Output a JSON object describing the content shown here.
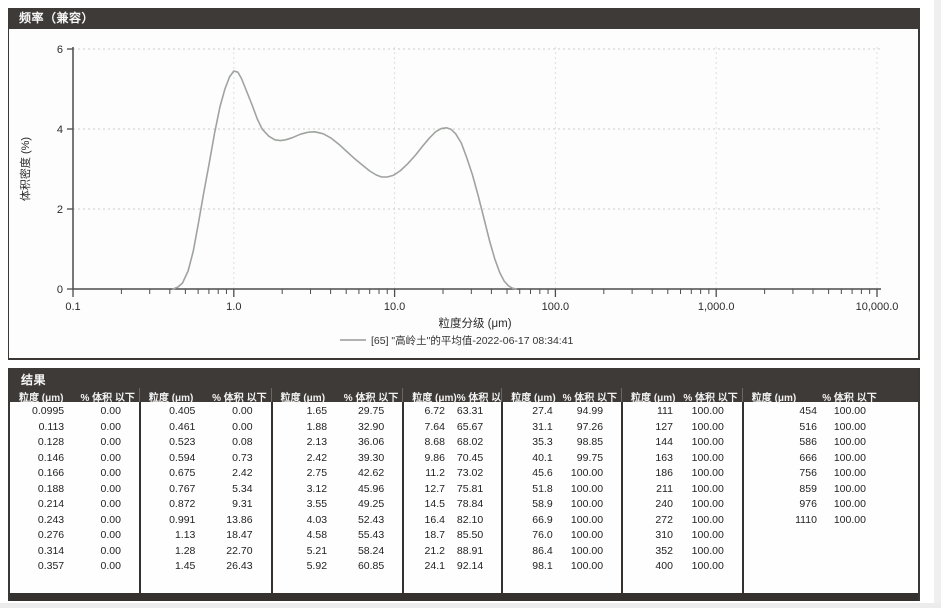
{
  "colors": {
    "bar_bg": "#3e3a37",
    "bar_text": "#f6f6f6",
    "curve": "#9fa49f",
    "grid": "#cccccc",
    "axis": "#4d4d4d",
    "tick_text": "#2b2b2b",
    "legend_line": "#9a9a9a"
  },
  "frequency_panel": {
    "title": "频率（兼容）"
  },
  "chart_data": {
    "type": "line",
    "title": "频率（兼容）",
    "xlabel": "粒度分级 (μm)",
    "ylabel": "体积密度 (%)",
    "x_scale": "log",
    "xlim": [
      0.1,
      10000
    ],
    "ylim": [
      0,
      6
    ],
    "x_ticks": [
      "0.1",
      "1.0",
      "10.0",
      "100.0",
      "1,000.0",
      "10,000.0"
    ],
    "y_ticks": [
      "0",
      "2",
      "4",
      "6"
    ],
    "grid": true,
    "legend": {
      "position": "bottom",
      "entries": [
        "[65] \"高岭土\"的平均值-2022-06-17 08:34:41"
      ]
    },
    "series": [
      {
        "name": "[65] \"高岭土\"的平均值-2022-06-17 08:34:41",
        "color": "#9fa49f",
        "points": [
          [
            0.42,
            0
          ],
          [
            0.45,
            0.05
          ],
          [
            0.48,
            0.15
          ],
          [
            0.52,
            0.45
          ],
          [
            0.56,
            0.95
          ],
          [
            0.6,
            1.6
          ],
          [
            0.65,
            2.4
          ],
          [
            0.7,
            3.1
          ],
          [
            0.76,
            3.9
          ],
          [
            0.82,
            4.55
          ],
          [
            0.88,
            5.0
          ],
          [
            0.94,
            5.3
          ],
          [
            1.0,
            5.45
          ],
          [
            1.06,
            5.42
          ],
          [
            1.12,
            5.25
          ],
          [
            1.2,
            4.95
          ],
          [
            1.3,
            4.6
          ],
          [
            1.4,
            4.25
          ],
          [
            1.5,
            4.0
          ],
          [
            1.65,
            3.82
          ],
          [
            1.8,
            3.73
          ],
          [
            1.95,
            3.71
          ],
          [
            2.1,
            3.73
          ],
          [
            2.3,
            3.78
          ],
          [
            2.6,
            3.87
          ],
          [
            2.9,
            3.92
          ],
          [
            3.2,
            3.93
          ],
          [
            3.6,
            3.88
          ],
          [
            4.0,
            3.78
          ],
          [
            4.5,
            3.62
          ],
          [
            5.0,
            3.45
          ],
          [
            5.6,
            3.27
          ],
          [
            6.3,
            3.1
          ],
          [
            7.0,
            2.95
          ],
          [
            7.7,
            2.85
          ],
          [
            8.3,
            2.8
          ],
          [
            9.0,
            2.8
          ],
          [
            9.8,
            2.84
          ],
          [
            10.8,
            2.95
          ],
          [
            12,
            3.12
          ],
          [
            13.5,
            3.35
          ],
          [
            15,
            3.58
          ],
          [
            16.5,
            3.78
          ],
          [
            18,
            3.93
          ],
          [
            19.5,
            4.01
          ],
          [
            21,
            4.03
          ],
          [
            22.5,
            3.99
          ],
          [
            24,
            3.88
          ],
          [
            26,
            3.65
          ],
          [
            28,
            3.3
          ],
          [
            30.5,
            2.85
          ],
          [
            33,
            2.35
          ],
          [
            36,
            1.75
          ],
          [
            39,
            1.2
          ],
          [
            42,
            0.75
          ],
          [
            45,
            0.42
          ],
          [
            48,
            0.2
          ],
          [
            51,
            0.08
          ],
          [
            54,
            0.02
          ],
          [
            57,
            0
          ]
        ]
      }
    ]
  },
  "results_panel": {
    "title": "结果",
    "size_header": "粒度 (μm)",
    "pct_header": "% 体积 以下",
    "groups": [
      [
        [
          "0.0995",
          "0.00"
        ],
        [
          "0.113",
          "0.00"
        ],
        [
          "0.128",
          "0.00"
        ],
        [
          "0.146",
          "0.00"
        ],
        [
          "0.166",
          "0.00"
        ],
        [
          "0.188",
          "0.00"
        ],
        [
          "0.214",
          "0.00"
        ],
        [
          "0.243",
          "0.00"
        ],
        [
          "0.276",
          "0.00"
        ],
        [
          "0.314",
          "0.00"
        ],
        [
          "0.357",
          "0.00"
        ]
      ],
      [
        [
          "0.405",
          "0.00"
        ],
        [
          "0.461",
          "0.00"
        ],
        [
          "0.523",
          "0.08"
        ],
        [
          "0.594",
          "0.73"
        ],
        [
          "0.675",
          "2.42"
        ],
        [
          "0.767",
          "5.34"
        ],
        [
          "0.872",
          "9.31"
        ],
        [
          "0.991",
          "13.86"
        ],
        [
          "1.13",
          "18.47"
        ],
        [
          "1.28",
          "22.70"
        ],
        [
          "1.45",
          "26.43"
        ]
      ],
      [
        [
          "1.65",
          "29.75"
        ],
        [
          "1.88",
          "32.90"
        ],
        [
          "2.13",
          "36.06"
        ],
        [
          "2.42",
          "39.30"
        ],
        [
          "2.75",
          "42.62"
        ],
        [
          "3.12",
          "45.96"
        ],
        [
          "3.55",
          "49.25"
        ],
        [
          "4.03",
          "52.43"
        ],
        [
          "4.58",
          "55.43"
        ],
        [
          "5.21",
          "58.24"
        ],
        [
          "5.92",
          "60.85"
        ]
      ],
      [
        [
          "6.72",
          "63.31"
        ],
        [
          "7.64",
          "65.67"
        ],
        [
          "8.68",
          "68.02"
        ],
        [
          "9.86",
          "70.45"
        ],
        [
          "11.2",
          "73.02"
        ],
        [
          "12.7",
          "75.81"
        ],
        [
          "14.5",
          "78.84"
        ],
        [
          "16.4",
          "82.10"
        ],
        [
          "18.7",
          "85.50"
        ],
        [
          "21.2",
          "88.91"
        ],
        [
          "24.1",
          "92.14"
        ]
      ],
      [
        [
          "27.4",
          "94.99"
        ],
        [
          "31.1",
          "97.26"
        ],
        [
          "35.3",
          "98.85"
        ],
        [
          "40.1",
          "99.75"
        ],
        [
          "45.6",
          "100.00"
        ],
        [
          "51.8",
          "100.00"
        ],
        [
          "58.9",
          "100.00"
        ],
        [
          "66.9",
          "100.00"
        ],
        [
          "76.0",
          "100.00"
        ],
        [
          "86.4",
          "100.00"
        ],
        [
          "98.1",
          "100.00"
        ]
      ],
      [
        [
          "111",
          "100.00"
        ],
        [
          "127",
          "100.00"
        ],
        [
          "144",
          "100.00"
        ],
        [
          "163",
          "100.00"
        ],
        [
          "186",
          "100.00"
        ],
        [
          "211",
          "100.00"
        ],
        [
          "240",
          "100.00"
        ],
        [
          "272",
          "100.00"
        ],
        [
          "310",
          "100.00"
        ],
        [
          "352",
          "100.00"
        ],
        [
          "400",
          "100.00"
        ]
      ],
      [
        [
          "454",
          "100.00"
        ],
        [
          "516",
          "100.00"
        ],
        [
          "586",
          "100.00"
        ],
        [
          "666",
          "100.00"
        ],
        [
          "756",
          "100.00"
        ],
        [
          "859",
          "100.00"
        ],
        [
          "976",
          "100.00"
        ],
        [
          "1110",
          "100.00"
        ]
      ]
    ]
  }
}
